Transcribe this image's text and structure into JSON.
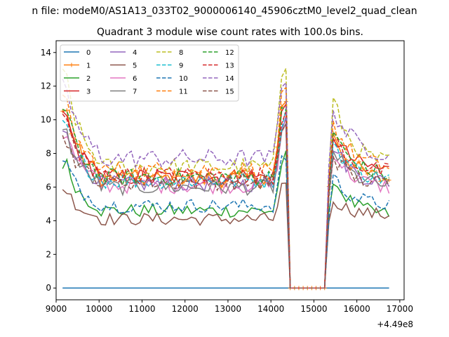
{
  "chart_data": {
    "type": "line",
    "suptitle": "n file: modeM0/AS1A13_033T02_9000006140_45906cztM0_level2_quad_clean",
    "title": "Quadrant 3 module wise count rates with 100.0s bins.",
    "xlabel": "",
    "ylabel": "",
    "x_offset_label": "+4.49e8",
    "xlim": [
      9000,
      17100
    ],
    "ylim": [
      -0.7,
      14.7
    ],
    "xticks": [
      9000,
      10000,
      11000,
      12000,
      13000,
      14000,
      15000,
      16000,
      17000
    ],
    "yticks": [
      0,
      2,
      4,
      6,
      8,
      10,
      12,
      14
    ],
    "grid": false,
    "legend_position": "top-left",
    "legend_columns": 4,
    "gap": [
      14450,
      15250
    ],
    "x_start": 9150,
    "x_end": 16750,
    "x_step": 100,
    "series": [
      {
        "name": "0",
        "color": "#1f77b4",
        "style": "solid",
        "marker": "none",
        "level": 0.0,
        "peak": 0.0,
        "end": 0.0,
        "zero": true
      },
      {
        "name": "1",
        "color": "#ff7f0e",
        "style": "solid",
        "marker": "plus",
        "level": 6.5,
        "peak": 10.8,
        "end": 6.3
      },
      {
        "name": "2",
        "color": "#2ca02c",
        "style": "solid",
        "marker": "none",
        "level": 4.6,
        "peak": 7.6,
        "end": 4.3
      },
      {
        "name": "3",
        "color": "#d62728",
        "style": "solid",
        "marker": "none",
        "level": 6.6,
        "peak": 10.5,
        "end": 6.9
      },
      {
        "name": "4",
        "color": "#9467bd",
        "style": "solid",
        "marker": "none",
        "level": 6.2,
        "peak": 9.8,
        "end": 6.2
      },
      {
        "name": "5",
        "color": "#8c564b",
        "style": "solid",
        "marker": "none",
        "level": 4.1,
        "peak": 6.0,
        "end": 4.3
      },
      {
        "name": "6",
        "color": "#e377c2",
        "style": "solid",
        "marker": "none",
        "level": 6.1,
        "peak": 9.4,
        "end": 5.9
      },
      {
        "name": "7",
        "color": "#7f7f7f",
        "style": "solid",
        "marker": "none",
        "level": 6.0,
        "peak": 9.5,
        "end": 6.0
      },
      {
        "name": "8",
        "color": "#bcbd22",
        "style": "dashed",
        "marker": "none",
        "level": 7.2,
        "peak": 13.0,
        "end": 7.3
      },
      {
        "name": "9",
        "color": "#17becf",
        "style": "dashed",
        "marker": "none",
        "level": 6.4,
        "peak": 10.0,
        "end": 6.4
      },
      {
        "name": "10",
        "color": "#1f77b4",
        "style": "dashed",
        "marker": "none",
        "level": 4.9,
        "peak": 7.6,
        "end": 4.9
      },
      {
        "name": "11",
        "color": "#ff7f0e",
        "style": "dashed",
        "marker": "none",
        "level": 7.0,
        "peak": 11.3,
        "end": 7.1
      },
      {
        "name": "12",
        "color": "#2ca02c",
        "style": "dashed",
        "marker": "none",
        "level": 6.6,
        "peak": 10.8,
        "end": 6.6
      },
      {
        "name": "13",
        "color": "#d62728",
        "style": "dashed",
        "marker": "none",
        "level": 6.7,
        "peak": 10.3,
        "end": 6.8
      },
      {
        "name": "14",
        "color": "#9467bd",
        "style": "dashed",
        "marker": "none",
        "level": 7.7,
        "peak": 12.3,
        "end": 7.9
      },
      {
        "name": "15",
        "color": "#8c564b",
        "style": "dashed",
        "marker": "none",
        "level": 6.3,
        "peak": 9.0,
        "end": 6.1
      }
    ]
  }
}
